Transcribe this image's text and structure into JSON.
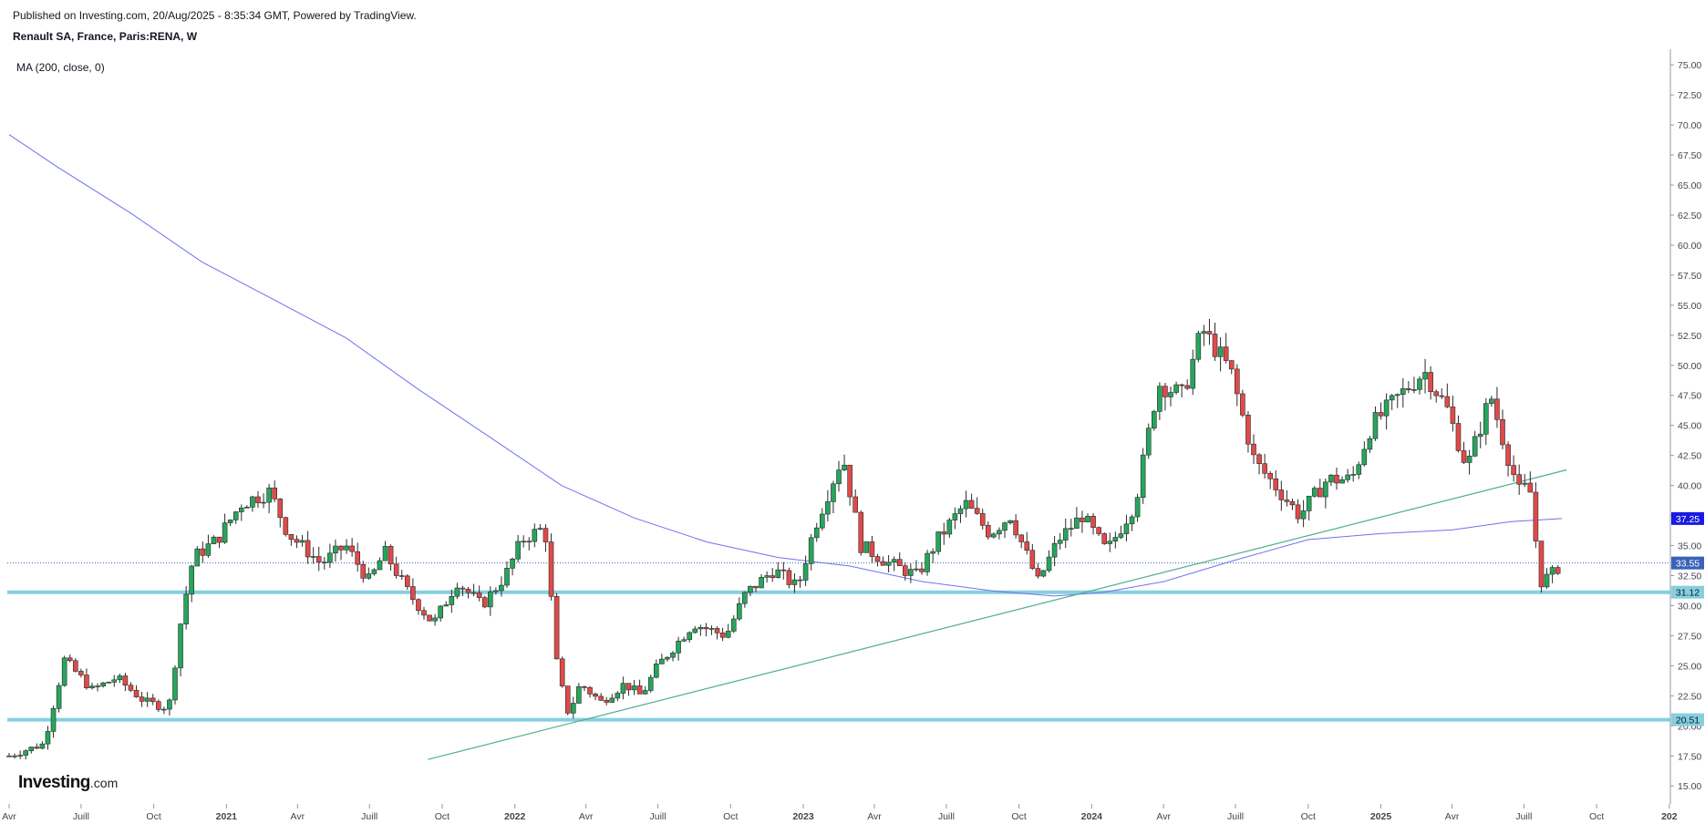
{
  "header": {
    "published": "Published on Investing.com, 20/Aug/2025 - 8:35:34 GMT, Powered by TradingView.",
    "symbol": "Renault SA, France, Paris:RENA, W",
    "indicator": "MA (200, close, 0)"
  },
  "logo": {
    "text": "Investing",
    "suffix": ".com"
  },
  "colors": {
    "up": "#26a65b",
    "down": "#e04a4a",
    "ma": "#6f71f0",
    "trendline": "#4fae8f",
    "hline": "#86cfe0",
    "axis_text": "#434651",
    "current_price": "#3b62b8",
    "ma_badge": "#1a1ae0"
  },
  "chart_data": {
    "type": "candlestick",
    "title": "Renault SA, France, Paris:RENA, W",
    "x_range": [
      "2020-04-01",
      "2025-12-31"
    ],
    "y_range": [
      13.5,
      76
    ],
    "y_ticks": [
      "75.00",
      "72.50",
      "70.00",
      "67.50",
      "65.00",
      "62.50",
      "60.00",
      "57.50",
      "55.00",
      "52.50",
      "50.00",
      "47.50",
      "45.00",
      "42.50",
      "40.00",
      "37.50",
      "35.00",
      "32.50",
      "30.00",
      "27.50",
      "25.00",
      "22.50",
      "20.00",
      "17.50",
      "15.00"
    ],
    "x_ticks": [
      {
        "label": "Avr",
        "date": "2020-04-01"
      },
      {
        "label": "Juill",
        "date": "2020-07-01"
      },
      {
        "label": "Oct",
        "date": "2020-10-01"
      },
      {
        "label": "2021",
        "date": "2021-01-01"
      },
      {
        "label": "Avr",
        "date": "2021-04-01"
      },
      {
        "label": "Juill",
        "date": "2021-07-01"
      },
      {
        "label": "Oct",
        "date": "2021-10-01"
      },
      {
        "label": "2022",
        "date": "2022-01-01"
      },
      {
        "label": "Avr",
        "date": "2022-04-01"
      },
      {
        "label": "Juill",
        "date": "2022-07-01"
      },
      {
        "label": "Oct",
        "date": "2022-10-01"
      },
      {
        "label": "2023",
        "date": "2023-01-01"
      },
      {
        "label": "Avr",
        "date": "2023-04-01"
      },
      {
        "label": "Juill",
        "date": "2023-07-01"
      },
      {
        "label": "Oct",
        "date": "2023-10-01"
      },
      {
        "label": "2024",
        "date": "2024-01-01"
      },
      {
        "label": "Avr",
        "date": "2024-04-01"
      },
      {
        "label": "Juill",
        "date": "2024-07-01"
      },
      {
        "label": "Oct",
        "date": "2024-10-01"
      },
      {
        "label": "2025",
        "date": "2025-01-01"
      },
      {
        "label": "Avr",
        "date": "2025-04-01"
      },
      {
        "label": "Juill",
        "date": "2025-07-01"
      },
      {
        "label": "Oct",
        "date": "2025-10-01"
      },
      {
        "label": "202",
        "date": "2026-01-01"
      }
    ],
    "close_path": [
      [
        "2020-04-01",
        17.5
      ],
      [
        "2020-05-15",
        18.5
      ],
      [
        "2020-06-10",
        25.5
      ],
      [
        "2020-07-15",
        23.0
      ],
      [
        "2020-08-15",
        24.0
      ],
      [
        "2020-09-20",
        22.0
      ],
      [
        "2020-10-20",
        21.5
      ],
      [
        "2020-11-05",
        29.0
      ],
      [
        "2020-11-20",
        34.0
      ],
      [
        "2020-12-20",
        35.5
      ],
      [
        "2021-01-20",
        38.5
      ],
      [
        "2021-02-25",
        39.5
      ],
      [
        "2021-03-20",
        36.0
      ],
      [
        "2021-05-01",
        33.5
      ],
      [
        "2021-06-01",
        35.0
      ],
      [
        "2021-07-01",
        32.0
      ],
      [
        "2021-07-20",
        34.5
      ],
      [
        "2021-08-20",
        31.0
      ],
      [
        "2021-09-20",
        28.5
      ],
      [
        "2021-10-20",
        32.0
      ],
      [
        "2021-11-20",
        30.0
      ],
      [
        "2021-12-20",
        32.5
      ],
      [
        "2022-01-10",
        35.5
      ],
      [
        "2022-02-08",
        36.5
      ],
      [
        "2022-02-24",
        24.5
      ],
      [
        "2022-03-10",
        21.0
      ],
      [
        "2022-03-25",
        23.5
      ],
      [
        "2022-04-20",
        22.0
      ],
      [
        "2022-05-20",
        23.5
      ],
      [
        "2022-06-10",
        22.5
      ],
      [
        "2022-07-01",
        25.0
      ],
      [
        "2022-08-15",
        28.5
      ],
      [
        "2022-09-25",
        27.5
      ],
      [
        "2022-10-20",
        31.0
      ],
      [
        "2022-11-25",
        33.0
      ],
      [
        "2022-12-25",
        31.5
      ],
      [
        "2023-01-15",
        36.5
      ],
      [
        "2023-02-20",
        42.5
      ],
      [
        "2023-03-15",
        35.0
      ],
      [
        "2023-04-20",
        33.5
      ],
      [
        "2023-05-25",
        32.5
      ],
      [
        "2023-06-20",
        35.5
      ],
      [
        "2023-07-25",
        38.5
      ],
      [
        "2023-08-25",
        36.0
      ],
      [
        "2023-09-20",
        37.5
      ],
      [
        "2023-10-25",
        32.0
      ],
      [
        "2023-11-20",
        35.5
      ],
      [
        "2023-12-20",
        37.5
      ],
      [
        "2024-01-20",
        34.5
      ],
      [
        "2024-02-25",
        38.5
      ],
      [
        "2024-03-25",
        48.5
      ],
      [
        "2024-04-25",
        47.5
      ],
      [
        "2024-05-20",
        53.0
      ],
      [
        "2024-06-25",
        49.5
      ],
      [
        "2024-07-25",
        42.0
      ],
      [
        "2024-08-20",
        40.0
      ],
      [
        "2024-09-20",
        37.5
      ],
      [
        "2024-10-25",
        40.5
      ],
      [
        "2024-11-25",
        40.5
      ],
      [
        "2024-12-20",
        45.0
      ],
      [
        "2025-01-25",
        47.5
      ],
      [
        "2025-02-25",
        49.5
      ],
      [
        "2025-03-25",
        46.5
      ],
      [
        "2025-04-20",
        41.5
      ],
      [
        "2025-05-20",
        47.5
      ],
      [
        "2025-06-08",
        43.0
      ],
      [
        "2025-06-25",
        39.5
      ],
      [
        "2025-07-08",
        40.0
      ],
      [
        "2025-07-22",
        32.0
      ],
      [
        "2025-08-04",
        32.5
      ],
      [
        "2025-08-18",
        33.55
      ]
    ],
    "moving_average": {
      "name": "MA (200, close, 0)",
      "points": [
        [
          "2020-04-01",
          69.2
        ],
        [
          "2020-06-01",
          66.5
        ],
        [
          "2020-09-01",
          62.7
        ],
        [
          "2020-12-01",
          58.6
        ],
        [
          "2021-03-01",
          55.5
        ],
        [
          "2021-06-01",
          52.3
        ],
        [
          "2021-09-01",
          48.0
        ],
        [
          "2021-12-01",
          44.0
        ],
        [
          "2022-03-01",
          40.0
        ],
        [
          "2022-06-01",
          37.3
        ],
        [
          "2022-09-01",
          35.3
        ],
        [
          "2022-12-01",
          34.0
        ],
        [
          "2023-03-01",
          33.3
        ],
        [
          "2023-06-01",
          32.0
        ],
        [
          "2023-09-01",
          31.2
        ],
        [
          "2023-11-15",
          30.8
        ],
        [
          "2024-01-15",
          31.1
        ],
        [
          "2024-04-01",
          32.0
        ],
        [
          "2024-07-01",
          33.8
        ],
        [
          "2024-10-01",
          35.5
        ],
        [
          "2025-01-01",
          36.0
        ],
        [
          "2025-04-01",
          36.3
        ],
        [
          "2025-06-15",
          37.0
        ],
        [
          "2025-08-18",
          37.25
        ]
      ]
    },
    "trendline": {
      "start": [
        "2021-09-13",
        17.2
      ],
      "end": [
        "2025-08-24",
        41.3
      ]
    },
    "horizontal_levels": [
      {
        "value": 31.12,
        "label": "31.12"
      },
      {
        "value": 20.51,
        "label": "20.51"
      }
    ],
    "current_price": {
      "value": 33.55,
      "label": "33.55"
    },
    "ma_price": {
      "value": 37.25,
      "label": "37.25"
    }
  }
}
